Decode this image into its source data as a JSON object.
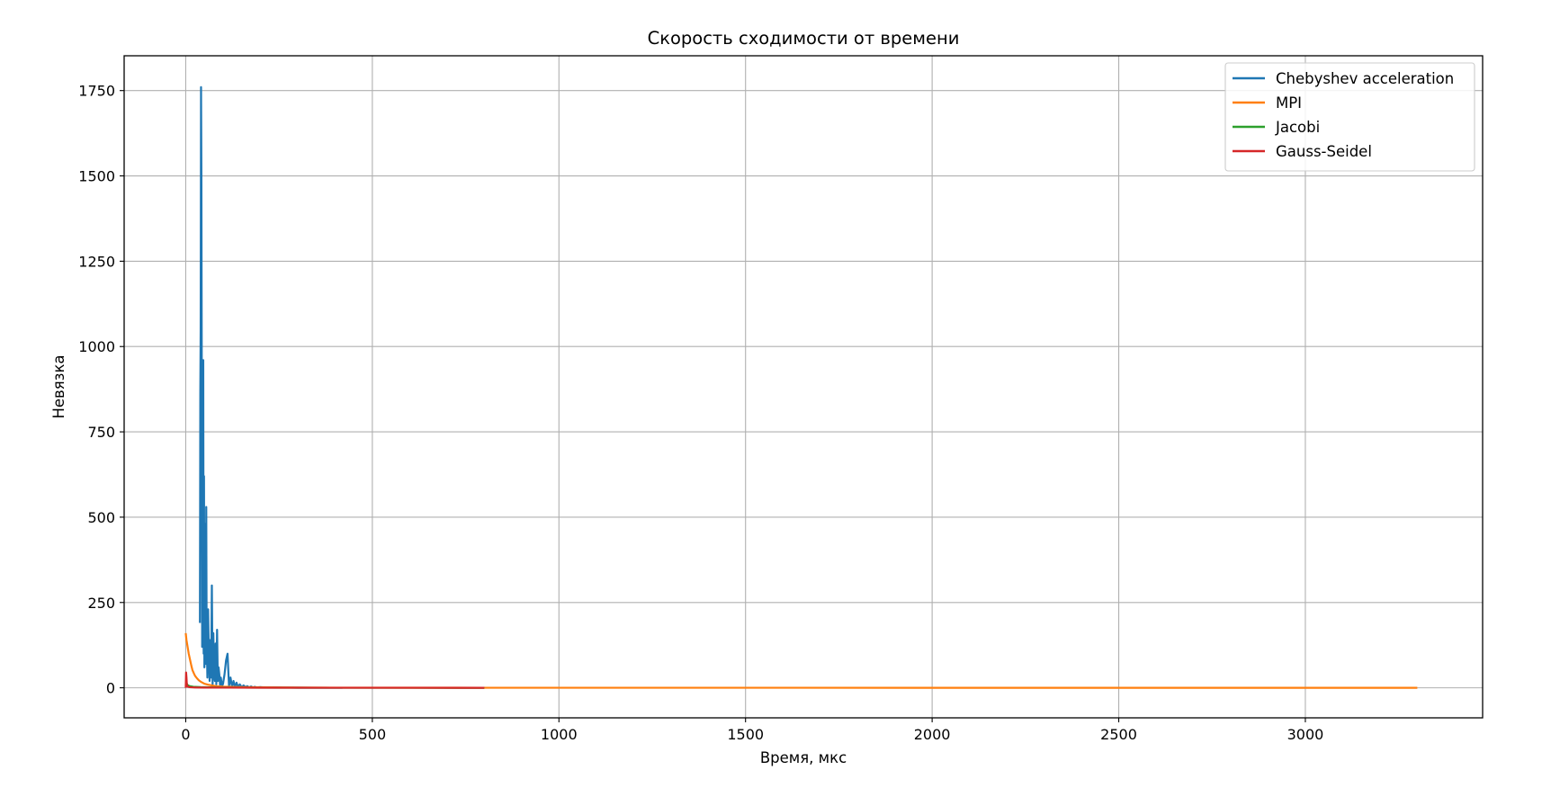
{
  "chart_data": {
    "type": "line",
    "title": "Скорость сходимости от времени",
    "xlabel": "Время, мкс",
    "ylabel": "Невязка",
    "xlim": [
      -165,
      3475
    ],
    "ylim": [
      -88,
      1852
    ],
    "xticks": [
      0,
      500,
      1000,
      1500,
      2000,
      2500,
      3000
    ],
    "yticks": [
      0,
      250,
      500,
      750,
      1000,
      1250,
      1500,
      1750
    ],
    "grid": true,
    "legend_position": "top-right",
    "series": [
      {
        "name": "Chebyshev acceleration",
        "color": "#1f77b4",
        "x": [
          38,
          39,
          40,
          41,
          42,
          43,
          44,
          45,
          46,
          47,
          48,
          49,
          50,
          51,
          52,
          53,
          54,
          55,
          56,
          58,
          60,
          62,
          64,
          66,
          68,
          70,
          72,
          74,
          76,
          78,
          80,
          82,
          84,
          86,
          88,
          90,
          92,
          94,
          96,
          98,
          100,
          104,
          108,
          112,
          116,
          120,
          124,
          128,
          132,
          136,
          140,
          145,
          150,
          155,
          160,
          165,
          170,
          175,
          180,
          185,
          190,
          200,
          210,
          220,
          240,
          260,
          280,
          300,
          340,
          380,
          420
        ],
        "y": [
          190,
          860,
          1050,
          1760,
          1500,
          900,
          120,
          750,
          300,
          960,
          100,
          620,
          60,
          90,
          480,
          120,
          70,
          530,
          160,
          30,
          230,
          100,
          20,
          140,
          30,
          300,
          10,
          160,
          40,
          20,
          130,
          10,
          170,
          20,
          60,
          40,
          8,
          30,
          15,
          6,
          12,
          40,
          80,
          100,
          5,
          30,
          3,
          20,
          2,
          15,
          3,
          10,
          2,
          7,
          2,
          5,
          1,
          4,
          1,
          3,
          1,
          2,
          1,
          1,
          1,
          0.5,
          0.5,
          0.3,
          0.2,
          0.1,
          0.1
        ]
      },
      {
        "name": "MPI",
        "color": "#ff7f0e",
        "x": [
          0,
          2,
          5,
          8,
          12,
          15,
          18,
          22,
          25,
          30,
          35,
          40,
          50,
          60,
          70,
          80,
          100,
          130,
          170,
          220,
          300,
          400,
          600,
          800,
          1000,
          1500,
          2000,
          2500,
          3000,
          3300
        ],
        "y": [
          160,
          140,
          120,
          100,
          80,
          65,
          52,
          42,
          35,
          28,
          22,
          18,
          12,
          9,
          7,
          5,
          3.5,
          2.5,
          1.8,
          1.2,
          0.8,
          0.5,
          0.3,
          0.2,
          0.1,
          0.08,
          0.05,
          0.04,
          0.03,
          0.02
        ]
      },
      {
        "name": "Jacobi",
        "color": "#2ca02c",
        "x": [
          0,
          5,
          10,
          20,
          40,
          80,
          150,
          250,
          400,
          600,
          800
        ],
        "y": [
          18,
          8,
          5,
          3,
          2,
          1,
          0.5,
          0.3,
          0.2,
          0.1,
          0.05
        ]
      },
      {
        "name": "Gauss-Seidel",
        "color": "#d62728",
        "x": [
          0,
          1,
          2,
          3,
          4,
          6,
          10,
          15,
          25,
          50,
          100,
          200,
          400,
          600,
          800
        ],
        "y": [
          0,
          45,
          30,
          10,
          5,
          3,
          2,
          1.5,
          1,
          0.7,
          0.5,
          0.3,
          0.15,
          0.08,
          0.03
        ]
      }
    ]
  }
}
